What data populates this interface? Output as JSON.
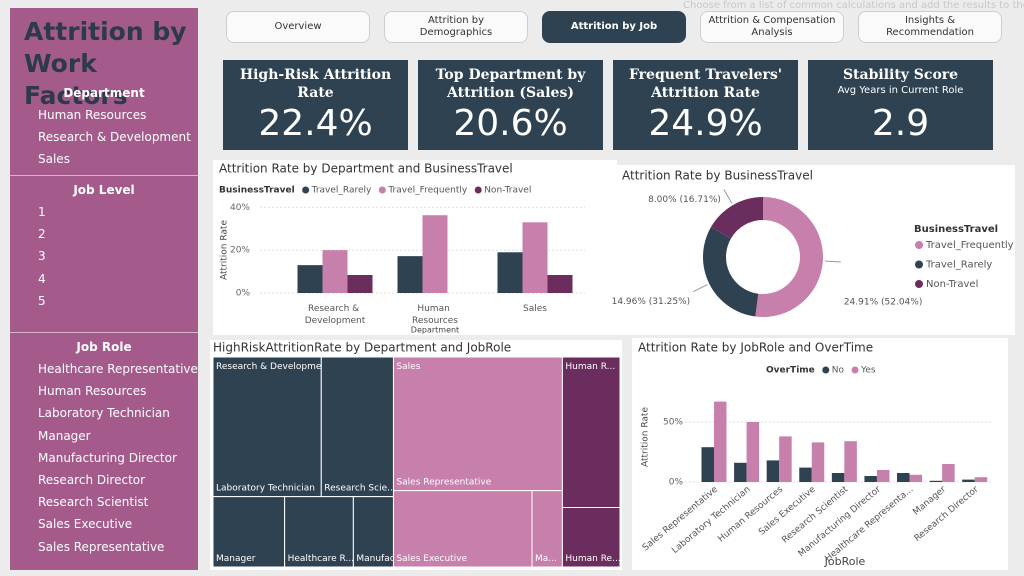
{
  "sidebar": {
    "title": "Attrition by Work Factors",
    "filters": [
      {
        "label": "Department",
        "items": [
          "Human Resources",
          "Research & Development",
          "Sales"
        ]
      },
      {
        "label": "Job Level",
        "items": [
          "1",
          "2",
          "3",
          "4",
          "5"
        ]
      },
      {
        "label": "Job Role",
        "items": [
          "Healthcare Representative",
          "Human Resources",
          "Laboratory Technician",
          "Manager",
          "Manufacturing Director",
          "Research Director",
          "Research Scientist",
          "Sales Executive",
          "Sales Representative"
        ]
      }
    ]
  },
  "tooltip": "Choose from a list of common calculations and add the results to the",
  "tabs": [
    "Overview",
    "Attrition by Demographics",
    "Attrition by Job",
    "Attrition & Compensation Analysis",
    "Insights & Recommendation"
  ],
  "active_tab": 2,
  "kpis": [
    {
      "title": "High-Risk Attrition Rate",
      "value": "22.4%"
    },
    {
      "title": "Top Department by Attrition (Sales)",
      "value": "20.6%"
    },
    {
      "title": "Frequent Travelers' Attrition Rate",
      "value": "24.9%"
    },
    {
      "title": "Stability Score",
      "subtitle": "Avg Years in Current Role",
      "value": "2.9"
    }
  ],
  "chart_data": [
    {
      "type": "bar",
      "title": "Attrition Rate by Department and BusinessTravel",
      "legend_title": "BusinessTravel",
      "categories": [
        "Research & Development",
        "Human Resources",
        "Sales"
      ],
      "series": [
        {
          "name": "Travel_Rarely",
          "color": "#2f4252",
          "values": [
            13,
            17.2,
            19
          ]
        },
        {
          "name": "Travel_Frequently",
          "color": "#c77fab",
          "values": [
            20,
            36.3,
            33
          ]
        },
        {
          "name": "Non-Travel",
          "color": "#6b2d5e",
          "values": [
            8.4,
            0,
            8.4
          ]
        }
      ],
      "x_label": "Department",
      "y_label": "Attrition Rate",
      "ylim": [
        0,
        42
      ],
      "yticks": [
        {
          "value": 0,
          "label": "0%"
        },
        {
          "value": 20,
          "label": "20%"
        },
        {
          "value": 40,
          "label": "40%"
        }
      ],
      "grid": true
    },
    {
      "type": "pie",
      "title": "Attrition Rate by BusinessTravel",
      "legend_title": "BusinessTravel",
      "categories": [
        "Travel_Frequently",
        "Travel_Rarely",
        "Non-Travel"
      ],
      "values": [
        24.91,
        14.96,
        8.0
      ],
      "value_labels": [
        "24.91% (52.04%)",
        "14.96% (31.25%)",
        "8.00% (16.71%)"
      ],
      "colors": [
        "#c77fab",
        "#2f4252",
        "#6b2d5e"
      ],
      "donut": true
    },
    {
      "type": "treemap",
      "title": "HighRiskAttritionRate by Department and JobRole",
      "groups": [
        {
          "name": "Research & Development",
          "color": "#2f4252",
          "items": [
            {
              "name": "Laboratory Technician",
              "value": 15
            },
            {
              "name": "Research Scie...",
              "value": 10
            },
            {
              "name": "Manager",
              "value": 5
            },
            {
              "name": "Healthcare R...",
              "value": 4.8
            },
            {
              "name": "Manufacturing Director",
              "value": 2.8
            }
          ]
        },
        {
          "name": "Sales",
          "color": "#c77fab",
          "items": [
            {
              "name": "Sales Representative",
              "value": 22.4
            },
            {
              "name": "Sales Executive",
              "value": 10.5
            },
            {
              "name": "Ma...",
              "value": 2.3
            }
          ]
        },
        {
          "name": "Human R...",
          "color": "#6b2d5e",
          "items": [
            {
              "name": null,
              "value": 8.6
            },
            {
              "name": "Human Re...",
              "value": 3.4
            }
          ]
        }
      ]
    },
    {
      "type": "bar",
      "title": "Attrition Rate by JobRole and OverTime",
      "legend_title": "OverTime",
      "categories": [
        "Sales Representative",
        "Laboratory Technician",
        "Human Resources",
        "Sales Executive",
        "Research Scientist",
        "Manufacturing Director",
        "Healthcare Representa...",
        "Manager",
        "Research Director"
      ],
      "series": [
        {
          "name": "No",
          "color": "#2f4252",
          "values": [
            29,
            16,
            18,
            12,
            7.5,
            5,
            7.5,
            1,
            2
          ]
        },
        {
          "name": "Yes",
          "color": "#c77fab",
          "values": [
            67,
            50,
            38,
            33,
            34,
            10,
            6,
            15,
            4
          ]
        }
      ],
      "x_label": "JobRole",
      "y_label": "Attrition Rate",
      "ylim": [
        0,
        75
      ],
      "yticks": [
        {
          "value": 0,
          "label": "0%"
        },
        {
          "value": 50,
          "label": "50%"
        }
      ],
      "grid": true,
      "rotate_labels": true
    }
  ]
}
